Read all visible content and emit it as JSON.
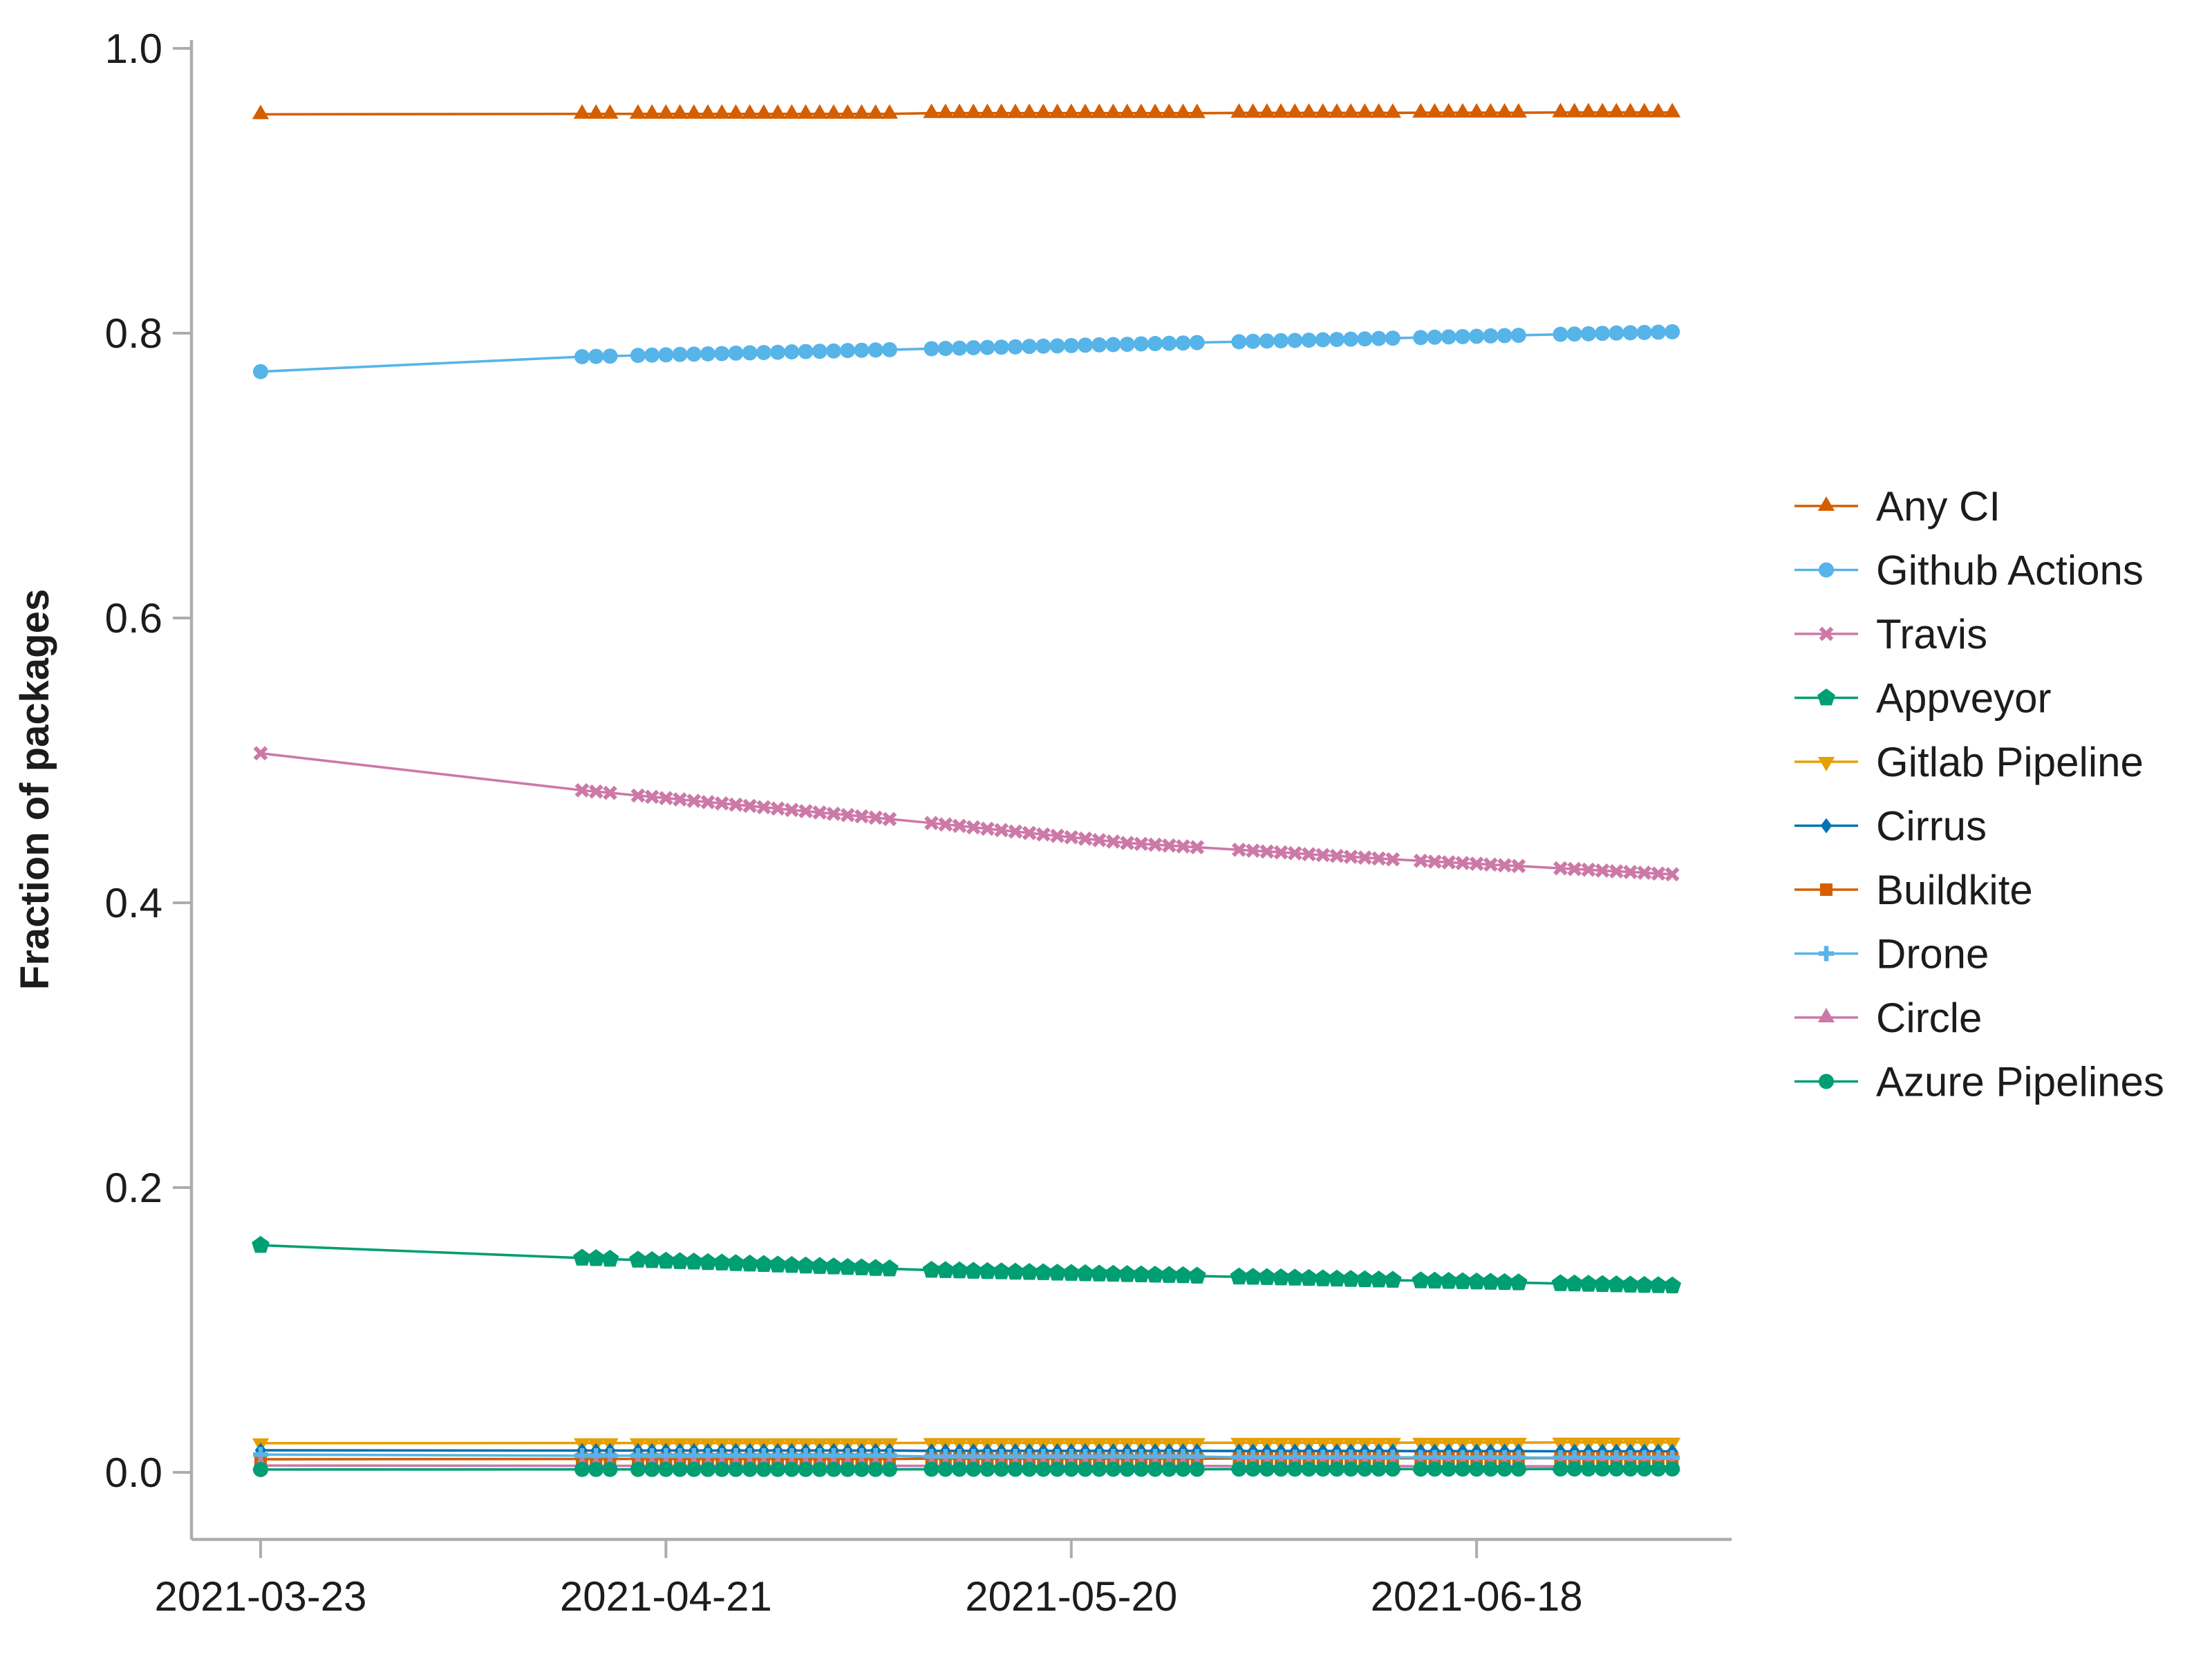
{
  "chart_data": {
    "type": "line",
    "title": "",
    "xlabel": "",
    "ylabel": "Fraction of packages",
    "grid": false,
    "legend_position": "right",
    "x_start": "2021-03-23",
    "x_tick_labels": [
      "2021-03-23",
      "2021-04-21",
      "2021-05-20",
      "2021-06-18"
    ],
    "y_ticks": [
      {
        "value": 0.0,
        "label": "0.0"
      },
      {
        "value": 0.2,
        "label": "0.2"
      },
      {
        "value": 0.4,
        "label": "0.4"
      },
      {
        "value": 0.6,
        "label": "0.6"
      },
      {
        "value": 0.8,
        "label": "0.8"
      },
      {
        "value": 1.0,
        "label": "1.0"
      }
    ],
    "ylim": [
      -0.047,
      1.02
    ],
    "x_dates": [
      "2021-03-23",
      "2021-04-15",
      "2021-04-16",
      "2021-04-17",
      "2021-04-19",
      "2021-04-20",
      "2021-04-21",
      "2021-04-22",
      "2021-04-23",
      "2021-04-24",
      "2021-04-25",
      "2021-04-26",
      "2021-04-27",
      "2021-04-28",
      "2021-04-29",
      "2021-04-30",
      "2021-05-01",
      "2021-05-02",
      "2021-05-03",
      "2021-05-04",
      "2021-05-05",
      "2021-05-06",
      "2021-05-07",
      "2021-05-10",
      "2021-05-11",
      "2021-05-12",
      "2021-05-13",
      "2021-05-14",
      "2021-05-15",
      "2021-05-16",
      "2021-05-17",
      "2021-05-18",
      "2021-05-19",
      "2021-05-20",
      "2021-05-21",
      "2021-05-22",
      "2021-05-23",
      "2021-05-24",
      "2021-05-25",
      "2021-05-26",
      "2021-05-27",
      "2021-05-28",
      "2021-05-29",
      "2021-06-01",
      "2021-06-02",
      "2021-06-03",
      "2021-06-04",
      "2021-06-05",
      "2021-06-06",
      "2021-06-07",
      "2021-06-08",
      "2021-06-09",
      "2021-06-10",
      "2021-06-11",
      "2021-06-12",
      "2021-06-14",
      "2021-06-15",
      "2021-06-16",
      "2021-06-17",
      "2021-06-18",
      "2021-06-19",
      "2021-06-20",
      "2021-06-21",
      "2021-06-24",
      "2021-06-25",
      "2021-06-26",
      "2021-06-27",
      "2021-06-28",
      "2021-06-29",
      "2021-06-30",
      "2021-07-01",
      "2021-07-02"
    ],
    "series": [
      {
        "name": "Any CI",
        "color": "#D55E00",
        "marker": "triangle-up",
        "values": [
          0.9537,
          0.954,
          0.954,
          0.954,
          0.954,
          0.954,
          0.954,
          0.954,
          0.954,
          0.954,
          0.954,
          0.954,
          0.954,
          0.954,
          0.954,
          0.954,
          0.954,
          0.954,
          0.954,
          0.954,
          0.954,
          0.954,
          0.954,
          0.9545,
          0.9545,
          0.9545,
          0.9545,
          0.9545,
          0.9545,
          0.9545,
          0.9545,
          0.9545,
          0.9545,
          0.9545,
          0.9545,
          0.9545,
          0.9545,
          0.9545,
          0.9545,
          0.9545,
          0.9545,
          0.9545,
          0.9545,
          0.9547,
          0.9547,
          0.9547,
          0.9547,
          0.9547,
          0.9547,
          0.9547,
          0.9547,
          0.9547,
          0.9547,
          0.9547,
          0.9547,
          0.9548,
          0.9548,
          0.9548,
          0.9548,
          0.9548,
          0.9548,
          0.9548,
          0.9548,
          0.955,
          0.955,
          0.955,
          0.955,
          0.955,
          0.955,
          0.955,
          0.955,
          0.955
        ]
      },
      {
        "name": "Github Actions",
        "color": "#56B4E9",
        "marker": "circle",
        "values": [
          0.773,
          0.7835,
          0.7837,
          0.7839,
          0.7844,
          0.7846,
          0.7848,
          0.7851,
          0.7853,
          0.7855,
          0.7857,
          0.786,
          0.7862,
          0.7864,
          0.7866,
          0.7869,
          0.7871,
          0.7873,
          0.7875,
          0.7878,
          0.788,
          0.7882,
          0.7884,
          0.7891,
          0.7893,
          0.7895,
          0.7898,
          0.79,
          0.7902,
          0.7904,
          0.7907,
          0.7909,
          0.7911,
          0.7913,
          0.7916,
          0.7918,
          0.792,
          0.7922,
          0.7925,
          0.7927,
          0.7929,
          0.7931,
          0.7934,
          0.794,
          0.7943,
          0.7945,
          0.7947,
          0.7949,
          0.7951,
          0.7954,
          0.7956,
          0.7958,
          0.796,
          0.7963,
          0.7965,
          0.7969,
          0.7972,
          0.7974,
          0.7976,
          0.7978,
          0.7981,
          0.7983,
          0.7985,
          0.7992,
          0.7994,
          0.7996,
          0.7999,
          0.8001,
          0.8003,
          0.8005,
          0.8007,
          0.801
        ]
      },
      {
        "name": "Travis",
        "color": "#CC79A7",
        "marker": "x",
        "values": [
          0.505,
          0.479,
          0.4781,
          0.4772,
          0.4753,
          0.4744,
          0.4735,
          0.4726,
          0.4716,
          0.4707,
          0.4698,
          0.4689,
          0.468,
          0.4671,
          0.4662,
          0.4652,
          0.4643,
          0.4634,
          0.4625,
          0.4616,
          0.4607,
          0.4598,
          0.4588,
          0.456,
          0.455,
          0.454,
          0.453,
          0.452,
          0.451,
          0.45,
          0.449,
          0.448,
          0.447,
          0.446,
          0.445,
          0.444,
          0.443,
          0.442,
          0.4414,
          0.4408,
          0.4402,
          0.4396,
          0.439,
          0.4372,
          0.4366,
          0.436,
          0.4354,
          0.4348,
          0.4341,
          0.4335,
          0.4329,
          0.4323,
          0.4317,
          0.4311,
          0.4305,
          0.4295,
          0.4289,
          0.4284,
          0.4279,
          0.4274,
          0.4268,
          0.4263,
          0.4258,
          0.4242,
          0.4237,
          0.4232,
          0.4226,
          0.4221,
          0.4216,
          0.4211,
          0.4205,
          0.42
        ]
      },
      {
        "name": "Appveyor",
        "color": "#009E73",
        "marker": "pentagon",
        "values": [
          0.1595,
          0.1505,
          0.1502,
          0.1498,
          0.1491,
          0.1488,
          0.1484,
          0.1481,
          0.1478,
          0.1474,
          0.1471,
          0.1467,
          0.1464,
          0.1461,
          0.1457,
          0.1454,
          0.145,
          0.1447,
          0.1444,
          0.144,
          0.1437,
          0.1433,
          0.143,
          0.142,
          0.1418,
          0.1416,
          0.1413,
          0.1411,
          0.1409,
          0.1407,
          0.1405,
          0.1403,
          0.14,
          0.1398,
          0.1396,
          0.1394,
          0.1392,
          0.139,
          0.1388,
          0.1386,
          0.1384,
          0.1382,
          0.1379,
          0.1373,
          0.1371,
          0.1369,
          0.1367,
          0.1365,
          0.1363,
          0.136,
          0.1358,
          0.1356,
          0.1354,
          0.1352,
          0.135,
          0.1346,
          0.1344,
          0.1342,
          0.134,
          0.1338,
          0.1336,
          0.1334,
          0.1332,
          0.1326,
          0.1324,
          0.1322,
          0.132,
          0.1318,
          0.1316,
          0.1314,
          0.1312,
          0.131
        ]
      },
      {
        "name": "Gitlab Pipeline",
        "color": "#E69F00",
        "marker": "triangle-down",
        "values": [
          0.0205,
          0.0206,
          0.0206,
          0.0206,
          0.0206,
          0.0206,
          0.0206,
          0.0206,
          0.0206,
          0.0206,
          0.0206,
          0.0206,
          0.0206,
          0.0206,
          0.0206,
          0.0206,
          0.0206,
          0.0206,
          0.0206,
          0.0206,
          0.0206,
          0.0206,
          0.0206,
          0.0207,
          0.0207,
          0.0207,
          0.0207,
          0.0207,
          0.0207,
          0.0207,
          0.0207,
          0.0207,
          0.0207,
          0.0207,
          0.0207,
          0.0207,
          0.0207,
          0.0207,
          0.0207,
          0.0207,
          0.0207,
          0.0207,
          0.0207,
          0.0208,
          0.0208,
          0.0208,
          0.0208,
          0.0208,
          0.0208,
          0.0208,
          0.0208,
          0.0208,
          0.0208,
          0.0208,
          0.0208,
          0.0209,
          0.0209,
          0.0209,
          0.0209,
          0.0209,
          0.0209,
          0.0209,
          0.0209,
          0.021,
          0.021,
          0.021,
          0.021,
          0.021,
          0.021,
          0.021,
          0.021,
          0.021
        ]
      },
      {
        "name": "Cirrus",
        "color": "#0072B2",
        "marker": "diamond",
        "values": [
          0.0155,
          0.0153,
          0.0153,
          0.0153,
          0.0153,
          0.0153,
          0.0153,
          0.0153,
          0.0153,
          0.0153,
          0.0153,
          0.0153,
          0.0153,
          0.0153,
          0.0153,
          0.0153,
          0.0153,
          0.0153,
          0.0153,
          0.0153,
          0.0153,
          0.0153,
          0.0153,
          0.0151,
          0.0151,
          0.0151,
          0.0151,
          0.0151,
          0.0151,
          0.0151,
          0.0151,
          0.0151,
          0.0151,
          0.0151,
          0.0151,
          0.0151,
          0.0151,
          0.0151,
          0.0151,
          0.0151,
          0.0151,
          0.0151,
          0.0151,
          0.015,
          0.015,
          0.015,
          0.015,
          0.015,
          0.015,
          0.015,
          0.015,
          0.015,
          0.015,
          0.015,
          0.015,
          0.0149,
          0.0149,
          0.0149,
          0.0149,
          0.0149,
          0.0149,
          0.0149,
          0.0149,
          0.0148,
          0.0148,
          0.0148,
          0.0148,
          0.0148,
          0.0148,
          0.0148,
          0.0148,
          0.0148
        ]
      },
      {
        "name": "Buildkite",
        "color": "#D55E00",
        "marker": "square",
        "values": [
          0.0092,
          0.0094,
          0.0094,
          0.0094,
          0.0094,
          0.0094,
          0.0094,
          0.0094,
          0.0094,
          0.0094,
          0.0094,
          0.0094,
          0.0094,
          0.0094,
          0.0094,
          0.0094,
          0.0094,
          0.0094,
          0.0094,
          0.0094,
          0.0094,
          0.0094,
          0.0094,
          0.0096,
          0.0096,
          0.0096,
          0.0096,
          0.0096,
          0.0096,
          0.0096,
          0.0096,
          0.0096,
          0.0096,
          0.0096,
          0.0096,
          0.0096,
          0.0096,
          0.0096,
          0.0096,
          0.0096,
          0.0096,
          0.0096,
          0.0096,
          0.0098,
          0.0098,
          0.0098,
          0.0098,
          0.0098,
          0.0098,
          0.0098,
          0.0098,
          0.0098,
          0.0098,
          0.0098,
          0.0098,
          0.0099,
          0.0099,
          0.0099,
          0.0099,
          0.0099,
          0.0099,
          0.0099,
          0.0099,
          0.01,
          0.01,
          0.01,
          0.01,
          0.01,
          0.01,
          0.01,
          0.01,
          0.01
        ]
      },
      {
        "name": "Drone",
        "color": "#56B4E9",
        "marker": "plus",
        "values": [
          0.0125,
          0.0117,
          0.0117,
          0.0117,
          0.0117,
          0.0117,
          0.0117,
          0.0117,
          0.0117,
          0.0117,
          0.0117,
          0.0117,
          0.0117,
          0.0117,
          0.0117,
          0.0117,
          0.0117,
          0.0117,
          0.0117,
          0.0117,
          0.0117,
          0.0117,
          0.0117,
          0.0111,
          0.0111,
          0.0111,
          0.0111,
          0.0111,
          0.0111,
          0.0111,
          0.0111,
          0.0111,
          0.0111,
          0.0111,
          0.0111,
          0.0111,
          0.0111,
          0.0111,
          0.0111,
          0.0111,
          0.0111,
          0.0111,
          0.0111,
          0.0106,
          0.0106,
          0.0106,
          0.0106,
          0.0106,
          0.0106,
          0.0106,
          0.0106,
          0.0106,
          0.0106,
          0.0106,
          0.0106,
          0.0104,
          0.0104,
          0.0104,
          0.0104,
          0.0104,
          0.0104,
          0.0104,
          0.0104,
          0.0103,
          0.0103,
          0.0103,
          0.0103,
          0.0103,
          0.0103,
          0.0103,
          0.0103,
          0.0103
        ]
      },
      {
        "name": "Circle",
        "color": "#CC79A7",
        "marker": "triangle-up",
        "values": [
          0.0048,
          0.0046,
          0.0046,
          0.0046,
          0.0046,
          0.0046,
          0.0046,
          0.0046,
          0.0046,
          0.0046,
          0.0046,
          0.0046,
          0.0046,
          0.0046,
          0.0046,
          0.0046,
          0.0046,
          0.0046,
          0.0046,
          0.0046,
          0.0046,
          0.0046,
          0.0046,
          0.0045,
          0.0045,
          0.0045,
          0.0045,
          0.0045,
          0.0045,
          0.0045,
          0.0045,
          0.0045,
          0.0045,
          0.0045,
          0.0045,
          0.0045,
          0.0045,
          0.0045,
          0.0045,
          0.0045,
          0.0045,
          0.0045,
          0.0045,
          0.0044,
          0.0044,
          0.0044,
          0.0044,
          0.0044,
          0.0044,
          0.0044,
          0.0044,
          0.0044,
          0.0044,
          0.0044,
          0.0044,
          0.0043,
          0.0043,
          0.0043,
          0.0043,
          0.0043,
          0.0043,
          0.0043,
          0.0043,
          0.0042,
          0.0042,
          0.0042,
          0.0042,
          0.0042,
          0.0042,
          0.0042,
          0.0042,
          0.0042
        ]
      },
      {
        "name": "Azure Pipelines",
        "color": "#009E73",
        "marker": "circle",
        "values": [
          0.002,
          0.0021,
          0.0021,
          0.0021,
          0.0021,
          0.0021,
          0.0021,
          0.0021,
          0.0021,
          0.0021,
          0.0021,
          0.0021,
          0.0021,
          0.0021,
          0.0021,
          0.0021,
          0.0021,
          0.0021,
          0.0021,
          0.0021,
          0.0021,
          0.0021,
          0.0021,
          0.0022,
          0.0022,
          0.0022,
          0.0022,
          0.0022,
          0.0022,
          0.0022,
          0.0022,
          0.0022,
          0.0022,
          0.0022,
          0.0022,
          0.0022,
          0.0022,
          0.0022,
          0.0022,
          0.0022,
          0.0022,
          0.0022,
          0.0022,
          0.0023,
          0.0023,
          0.0023,
          0.0023,
          0.0023,
          0.0023,
          0.0023,
          0.0023,
          0.0023,
          0.0023,
          0.0023,
          0.0023,
          0.0023,
          0.0023,
          0.0023,
          0.0023,
          0.0023,
          0.0023,
          0.0023,
          0.0023,
          0.0024,
          0.0024,
          0.0024,
          0.0024,
          0.0024,
          0.0024,
          0.0024,
          0.0024,
          0.0024
        ]
      }
    ]
  },
  "colors": {
    "axis": "#ADADAD",
    "text": "#1C1C1C",
    "background": "#FFFFFF"
  }
}
